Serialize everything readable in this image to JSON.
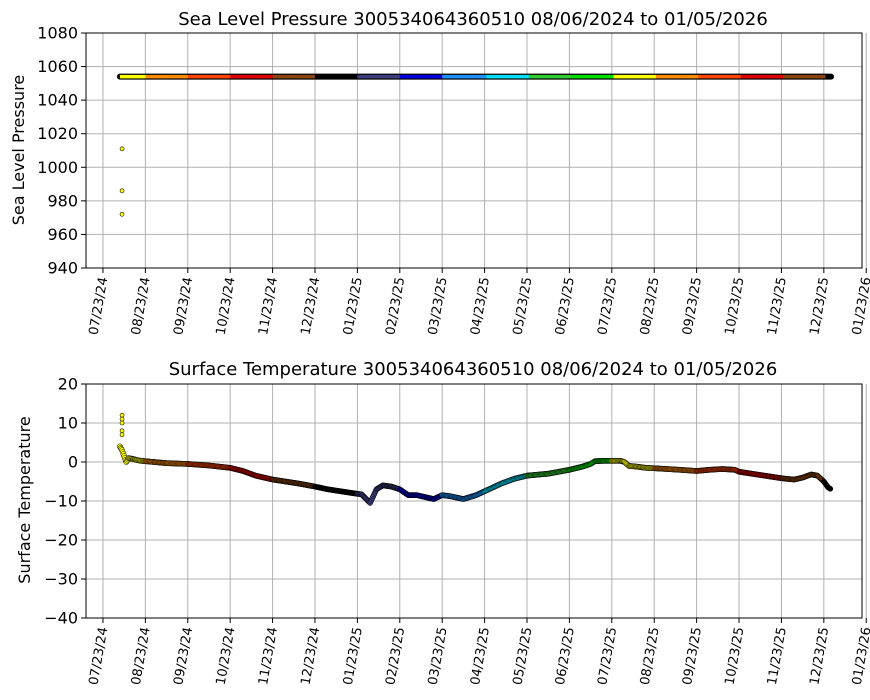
{
  "chart_data": [
    {
      "type": "scatter",
      "title": "Sea Level Pressure 300534064360510  08/06/2024 to 01/05/2026",
      "xlabel": "",
      "ylabel": "Sea Level Pressure",
      "ylim": [
        940,
        1080
      ],
      "yticks": [
        "940",
        "960",
        "980",
        "1000",
        "1020",
        "1040",
        "1060",
        "1080"
      ],
      "xticks": [
        "07/23/24",
        "08/23/24",
        "09/23/24",
        "10/23/24",
        "11/23/24",
        "12/23/24",
        "01/23/25",
        "02/23/25",
        "03/23/25",
        "04/23/25",
        "05/23/25",
        "06/23/25",
        "07/23/25",
        "08/23/25",
        "09/23/25",
        "10/23/25",
        "11/23/25",
        "12/23/25",
        "01/23/26"
      ],
      "grid": true,
      "x_range_months": [
        -0.4,
        17.9
      ],
      "series_line": {
        "value": 1054,
        "start_month": 0.4,
        "end_month": 17.17
      },
      "outliers": [
        {
          "month": 0.45,
          "value": 1011
        },
        {
          "month": 0.45,
          "value": 986
        },
        {
          "month": 0.45,
          "value": 972
        }
      ]
    },
    {
      "type": "scatter",
      "title": "Surface Temperature 300534064360510  08/06/2024 to 01/05/2026",
      "xlabel": "",
      "ylabel": "Surface Temperature",
      "ylim": [
        -40,
        20
      ],
      "yticks": [
        "−40",
        "−30",
        "−20",
        "−10",
        "0",
        "10",
        "20"
      ],
      "xticks": [
        "07/23/24",
        "08/23/24",
        "09/23/24",
        "10/23/24",
        "11/23/24",
        "12/23/24",
        "01/23/25",
        "02/23/25",
        "03/23/25",
        "04/23/25",
        "05/23/25",
        "06/23/25",
        "07/23/25",
        "08/23/25",
        "09/23/25",
        "10/23/25",
        "11/23/25",
        "12/23/25",
        "01/23/26"
      ],
      "grid": true,
      "x_range_months": [
        -0.4,
        17.9
      ],
      "series_points": [
        [
          0.4,
          4.0
        ],
        [
          0.45,
          3.0
        ],
        [
          0.5,
          1.5
        ],
        [
          0.55,
          0.0
        ],
        [
          0.6,
          1.0
        ],
        [
          0.7,
          0.8
        ],
        [
          0.8,
          0.5
        ],
        [
          0.9,
          0.3
        ],
        [
          1.0,
          0.2
        ],
        [
          1.2,
          0.0
        ],
        [
          1.5,
          -0.3
        ],
        [
          2.0,
          -0.5
        ],
        [
          2.5,
          -0.9
        ],
        [
          3.0,
          -1.5
        ],
        [
          3.3,
          -2.3
        ],
        [
          3.6,
          -3.5
        ],
        [
          4.0,
          -4.5
        ],
        [
          4.3,
          -5.0
        ],
        [
          4.6,
          -5.5
        ],
        [
          5.0,
          -6.3
        ],
        [
          5.3,
          -7.0
        ],
        [
          5.6,
          -7.5
        ],
        [
          5.9,
          -8.0
        ],
        [
          6.1,
          -8.3
        ],
        [
          6.3,
          -10.5
        ],
        [
          6.45,
          -7.0
        ],
        [
          6.6,
          -6.0
        ],
        [
          6.8,
          -6.3
        ],
        [
          7.0,
          -7.0
        ],
        [
          7.2,
          -8.5
        ],
        [
          7.4,
          -8.5
        ],
        [
          7.6,
          -9.0
        ],
        [
          7.8,
          -9.5
        ],
        [
          8.0,
          -8.5
        ],
        [
          8.2,
          -8.8
        ],
        [
          8.5,
          -9.5
        ],
        [
          8.8,
          -8.5
        ],
        [
          9.1,
          -7.0
        ],
        [
          9.4,
          -5.5
        ],
        [
          9.7,
          -4.3
        ],
        [
          10.0,
          -3.5
        ],
        [
          10.5,
          -3.0
        ],
        [
          11.0,
          -2.0
        ],
        [
          11.3,
          -1.2
        ],
        [
          11.5,
          -0.5
        ],
        [
          11.6,
          0.2
        ],
        [
          11.8,
          0.3
        ],
        [
          12.0,
          0.3
        ],
        [
          12.2,
          0.3
        ],
        [
          12.3,
          0.0
        ],
        [
          12.4,
          -1.0
        ],
        [
          12.6,
          -1.2
        ],
        [
          12.8,
          -1.5
        ],
        [
          13.0,
          -1.6
        ],
        [
          13.3,
          -1.8
        ],
        [
          13.6,
          -2.0
        ],
        [
          14.0,
          -2.3
        ],
        [
          14.3,
          -2.0
        ],
        [
          14.6,
          -1.8
        ],
        [
          14.9,
          -2.0
        ],
        [
          15.0,
          -2.5
        ],
        [
          15.3,
          -3.0
        ],
        [
          15.6,
          -3.5
        ],
        [
          15.9,
          -4.0
        ],
        [
          16.1,
          -4.3
        ],
        [
          16.3,
          -4.5
        ],
        [
          16.5,
          -4.0
        ],
        [
          16.7,
          -3.2
        ],
        [
          16.85,
          -3.5
        ],
        [
          17.0,
          -5.0
        ],
        [
          17.1,
          -6.5
        ],
        [
          17.17,
          -7.0
        ]
      ],
      "outliers": [
        {
          "month": 0.45,
          "value": 12
        },
        {
          "month": 0.45,
          "value": 11
        },
        {
          "month": 0.45,
          "value": 10
        },
        {
          "month": 0.45,
          "value": 8
        },
        {
          "month": 0.45,
          "value": 7
        }
      ]
    }
  ],
  "colors": {
    "grid": "#b0b0b0",
    "axis": "#000000",
    "month_colors": [
      "#ffff00",
      "#ff8c00",
      "#ff4500",
      "#e00000",
      "#8b4513",
      "#000000",
      "#3f3f7f",
      "#0000e0",
      "#1e90ff",
      "#00e0ff",
      "#32cd32",
      "#00e000",
      "#ffff00",
      "#ff8c00",
      "#ff4500",
      "#e00000",
      "#8b4513",
      "#000000"
    ]
  }
}
